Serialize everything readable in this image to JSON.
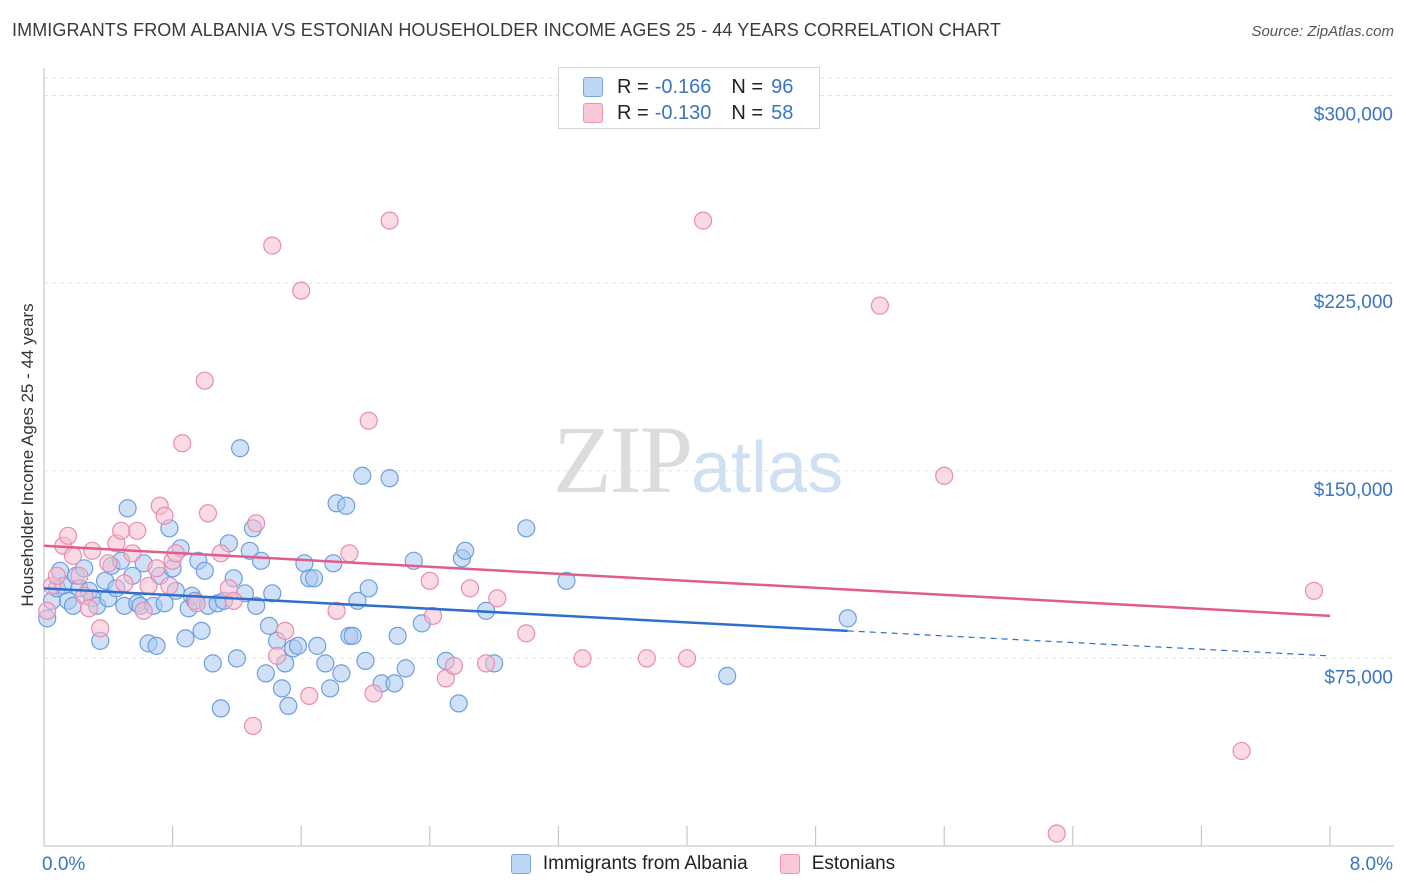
{
  "header": {
    "title": "IMMIGRANTS FROM ALBANIA VS ESTONIAN HOUSEHOLDER INCOME AGES 25 - 44 YEARS CORRELATION CHART",
    "source": "Source: ZipAtlas.com"
  },
  "watermark": {
    "zip": "ZIP",
    "atlas": "atlas"
  },
  "legend_top": [
    {
      "r_label": "R =",
      "r_value": "-0.166",
      "n_label": "N =",
      "n_value": "96"
    },
    {
      "r_label": "R =",
      "r_value": "-0.130",
      "n_label": "N =",
      "n_value": "58"
    }
  ],
  "legend_bottom": [
    {
      "label": "Immigrants from Albania"
    },
    {
      "label": "Estonians"
    }
  ],
  "colors": {
    "blue_fill": "#a9c9f0",
    "blue_stroke": "#6d9fdc",
    "blue_line": "#2d6fcc",
    "pink_fill": "#f6bcd0",
    "pink_stroke": "#ea8cae",
    "pink_line": "#e05c8b",
    "axis_text": "#3a74c4",
    "grid": "#e2e2e2"
  },
  "chart_data": {
    "type": "scatter",
    "title": "IMMIGRANTS FROM ALBANIA VS ESTONIAN HOUSEHOLDER INCOME AGES 25 - 44 YEARS CORRELATION CHART",
    "xlabel": "",
    "ylabel": "Householder Income Ages 25 - 44 years",
    "xlim": [
      0,
      8
    ],
    "ylim": [
      0,
      307000
    ],
    "x_ticks": [
      0,
      0.8,
      1.6,
      2.4,
      3.2,
      4.0,
      4.8,
      5.6,
      6.4,
      7.2,
      8.0
    ],
    "x_tick_labels": {
      "0": "0.0%",
      "8": "8.0%"
    },
    "y_ticks": [
      75000,
      150000,
      225000,
      300000
    ],
    "y_tick_labels": [
      "$75,000",
      "$150,000",
      "$225,000",
      "$300,000"
    ],
    "grid": true,
    "legend_placement": "top-center",
    "series": [
      {
        "name": "Immigrants from Albania",
        "trend": {
          "x0": 0,
          "y0": 103000,
          "x1": 5.0,
          "y1": 86000,
          "dashed_to_x": 8.0,
          "dashed_y": 76000
        },
        "points": [
          [
            0.02,
            91000
          ],
          [
            0.05,
            98000
          ],
          [
            0.08,
            103000
          ],
          [
            0.1,
            110000
          ],
          [
            0.12,
            104000
          ],
          [
            0.15,
            98000
          ],
          [
            0.18,
            96000
          ],
          [
            0.2,
            108000
          ],
          [
            0.22,
            103000
          ],
          [
            0.25,
            111000
          ],
          [
            0.28,
            102000
          ],
          [
            0.3,
            99000
          ],
          [
            0.33,
            96000
          ],
          [
            0.35,
            82000
          ],
          [
            0.38,
            106000
          ],
          [
            0.4,
            99000
          ],
          [
            0.42,
            112000
          ],
          [
            0.45,
            103000
          ],
          [
            0.48,
            114000
          ],
          [
            0.5,
            96000
          ],
          [
            0.52,
            135000
          ],
          [
            0.55,
            108000
          ],
          [
            0.58,
            97000
          ],
          [
            0.6,
            96000
          ],
          [
            0.62,
            113000
          ],
          [
            0.65,
            81000
          ],
          [
            0.68,
            96000
          ],
          [
            0.7,
            80000
          ],
          [
            0.72,
            108000
          ],
          [
            0.75,
            97000
          ],
          [
            0.78,
            127000
          ],
          [
            0.8,
            111000
          ],
          [
            0.82,
            102000
          ],
          [
            0.85,
            119000
          ],
          [
            0.88,
            83000
          ],
          [
            0.9,
            95000
          ],
          [
            0.92,
            100000
          ],
          [
            0.94,
            98000
          ],
          [
            0.96,
            114000
          ],
          [
            0.98,
            86000
          ],
          [
            1.0,
            110000
          ],
          [
            1.02,
            96000
          ],
          [
            1.05,
            73000
          ],
          [
            1.08,
            97000
          ],
          [
            1.1,
            55000
          ],
          [
            1.12,
            98000
          ],
          [
            1.15,
            121000
          ],
          [
            1.18,
            107000
          ],
          [
            1.2,
            75000
          ],
          [
            1.22,
            159000
          ],
          [
            1.25,
            101000
          ],
          [
            1.28,
            118000
          ],
          [
            1.3,
            127000
          ],
          [
            1.32,
            96000
          ],
          [
            1.35,
            114000
          ],
          [
            1.38,
            69000
          ],
          [
            1.4,
            88000
          ],
          [
            1.42,
            101000
          ],
          [
            1.45,
            82000
          ],
          [
            1.48,
            63000
          ],
          [
            1.5,
            73000
          ],
          [
            1.52,
            56000
          ],
          [
            1.55,
            79000
          ],
          [
            1.58,
            80000
          ],
          [
            1.62,
            113000
          ],
          [
            1.65,
            107000
          ],
          [
            1.68,
            107000
          ],
          [
            1.7,
            80000
          ],
          [
            1.75,
            73000
          ],
          [
            1.78,
            63000
          ],
          [
            1.8,
            113000
          ],
          [
            1.82,
            137000
          ],
          [
            1.85,
            69000
          ],
          [
            1.88,
            136000
          ],
          [
            1.9,
            84000
          ],
          [
            1.92,
            84000
          ],
          [
            1.95,
            98000
          ],
          [
            1.98,
            148000
          ],
          [
            2.0,
            74000
          ],
          [
            2.02,
            103000
          ],
          [
            2.1,
            65000
          ],
          [
            2.15,
            147000
          ],
          [
            2.18,
            65000
          ],
          [
            2.2,
            84000
          ],
          [
            2.25,
            71000
          ],
          [
            2.3,
            114000
          ],
          [
            2.35,
            89000
          ],
          [
            2.5,
            74000
          ],
          [
            2.58,
            57000
          ],
          [
            2.6,
            115000
          ],
          [
            2.62,
            118000
          ],
          [
            2.75,
            94000
          ],
          [
            2.8,
            73000
          ],
          [
            3.0,
            127000
          ],
          [
            3.25,
            106000
          ],
          [
            4.25,
            68000
          ],
          [
            5.0,
            91000
          ]
        ]
      },
      {
        "name": "Estonians",
        "trend": {
          "x0": 0,
          "y0": 120000,
          "x1": 8.0,
          "y1": 92000
        },
        "points": [
          [
            0.02,
            94000
          ],
          [
            0.05,
            104000
          ],
          [
            0.08,
            108000
          ],
          [
            0.12,
            120000
          ],
          [
            0.15,
            124000
          ],
          [
            0.18,
            116000
          ],
          [
            0.22,
            108000
          ],
          [
            0.25,
            100000
          ],
          [
            0.28,
            95000
          ],
          [
            0.3,
            118000
          ],
          [
            0.35,
            87000
          ],
          [
            0.4,
            113000
          ],
          [
            0.45,
            121000
          ],
          [
            0.48,
            126000
          ],
          [
            0.5,
            105000
          ],
          [
            0.55,
            117000
          ],
          [
            0.58,
            126000
          ],
          [
            0.62,
            94000
          ],
          [
            0.65,
            104000
          ],
          [
            0.7,
            111000
          ],
          [
            0.72,
            136000
          ],
          [
            0.75,
            132000
          ],
          [
            0.78,
            104000
          ],
          [
            0.8,
            114000
          ],
          [
            0.82,
            117000
          ],
          [
            0.86,
            161000
          ],
          [
            0.95,
            97000
          ],
          [
            1.0,
            186000
          ],
          [
            1.02,
            133000
          ],
          [
            1.1,
            117000
          ],
          [
            1.15,
            103000
          ],
          [
            1.18,
            98000
          ],
          [
            1.3,
            48000
          ],
          [
            1.32,
            129000
          ],
          [
            1.42,
            240000
          ],
          [
            1.45,
            76000
          ],
          [
            1.5,
            86000
          ],
          [
            1.6,
            222000
          ],
          [
            1.65,
            60000
          ],
          [
            1.82,
            94000
          ],
          [
            1.9,
            117000
          ],
          [
            2.02,
            170000
          ],
          [
            2.05,
            61000
          ],
          [
            2.15,
            250000
          ],
          [
            2.4,
            106000
          ],
          [
            2.42,
            92000
          ],
          [
            2.5,
            67000
          ],
          [
            2.55,
            72000
          ],
          [
            2.65,
            103000
          ],
          [
            2.75,
            73000
          ],
          [
            2.82,
            99000
          ],
          [
            3.0,
            85000
          ],
          [
            3.35,
            75000
          ],
          [
            3.75,
            75000
          ],
          [
            4.0,
            75000
          ],
          [
            4.1,
            250000
          ],
          [
            5.2,
            216000
          ],
          [
            5.6,
            148000
          ],
          [
            6.3,
            5000
          ],
          [
            7.45,
            38000
          ],
          [
            7.9,
            102000
          ]
        ]
      }
    ]
  }
}
